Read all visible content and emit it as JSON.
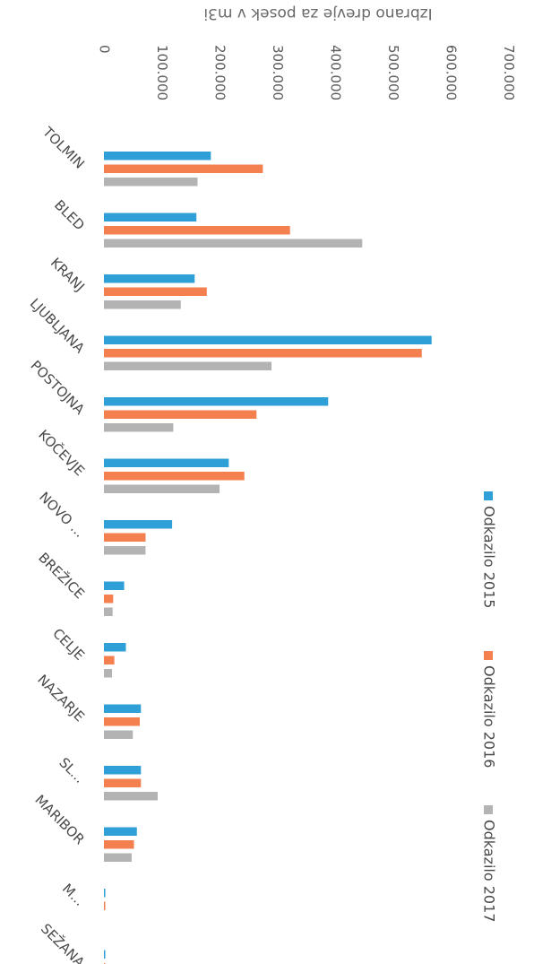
{
  "chart_data": {
    "type": "bar",
    "orientation": "horizontal",
    "title": "Izbrano drevje za posek v m3i",
    "xlabel": "",
    "ylabel": "",
    "xlim": [
      0,
      700000
    ],
    "ticks": [
      {
        "value": 0,
        "label": "0"
      },
      {
        "value": 100000,
        "label": "100.000"
      },
      {
        "value": 200000,
        "label": "200.000"
      },
      {
        "value": 300000,
        "label": "300.000"
      },
      {
        "value": 400000,
        "label": "400.000"
      },
      {
        "value": 500000,
        "label": "500.000"
      },
      {
        "value": 600000,
        "label": "600.000"
      },
      {
        "value": 700000,
        "label": "700.000"
      }
    ],
    "categories": [
      "TOLMIN",
      "BLED",
      "KRANJ",
      "LJUBLJANA",
      "POSTOJNA",
      "KOČEVJE",
      "NOVO ...",
      "BREŽICE",
      "CELJE",
      "NAZARJE",
      "SL...",
      "MARIBOR",
      "M...",
      "SEŽANA"
    ],
    "series": [
      {
        "name": "Odkazilo 2015",
        "color": "#2f9fd8",
        "values": [
          185000,
          160000,
          157000,
          567000,
          388000,
          216000,
          118000,
          35000,
          38000,
          64000,
          64000,
          57000,
          2000,
          2000
        ]
      },
      {
        "name": "Odkazilo 2016",
        "color": "#f47f4f",
        "values": [
          275000,
          322000,
          178000,
          550000,
          264000,
          243000,
          72000,
          16000,
          18000,
          62000,
          64000,
          52000,
          2000,
          2000
        ]
      },
      {
        "name": "Odkazilo 2017",
        "color": "#b3b3b3",
        "values": [
          162000,
          447000,
          133000,
          290000,
          120000,
          200000,
          72000,
          15000,
          14000,
          50000,
          93000,
          48000,
          0,
          0
        ]
      }
    ],
    "legend": {
      "position": "right"
    },
    "grid": false
  }
}
